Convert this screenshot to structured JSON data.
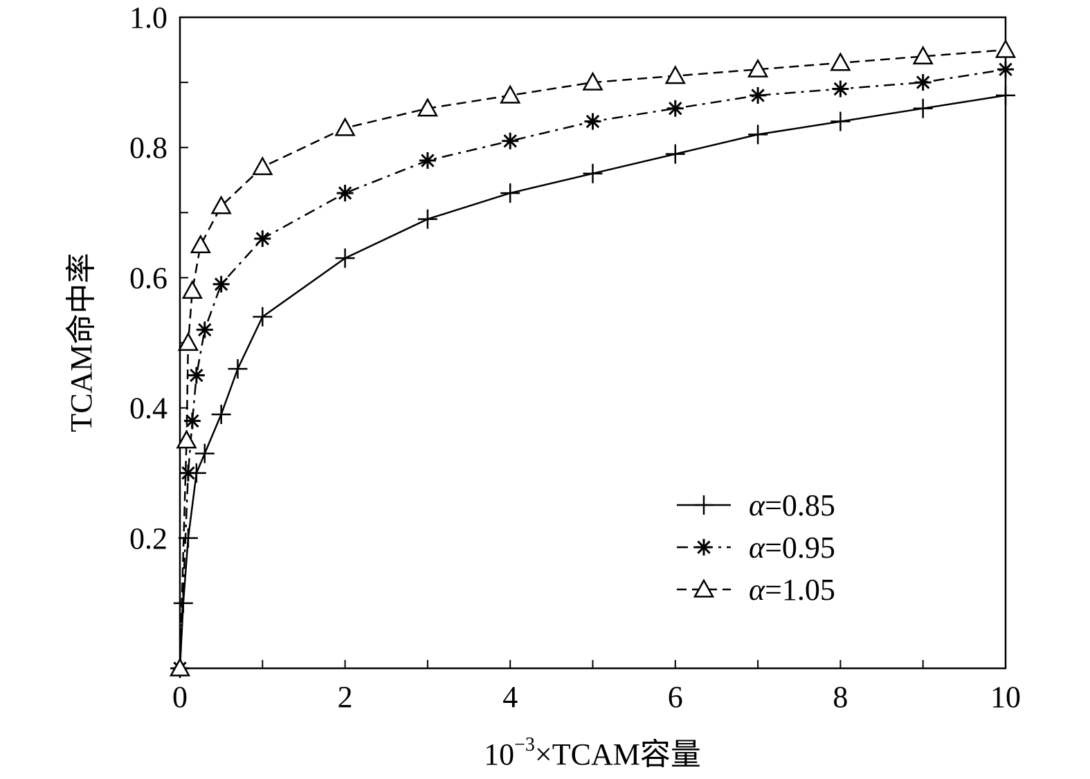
{
  "chart_data": {
    "type": "line",
    "title": "",
    "xlabel_prefix": "10",
    "xlabel_exponent": "−3",
    "xlabel_suffix": "×TCAM容量",
    "ylabel": "TCAM命中率",
    "xlim": [
      0,
      10
    ],
    "ylim": [
      0,
      1.0
    ],
    "x_ticks": [
      0,
      2,
      4,
      6,
      8,
      10
    ],
    "x_tick_labels": [
      "0",
      "2",
      "4",
      "6",
      "8",
      "10"
    ],
    "x_minor_ticks": [
      1,
      3,
      5,
      7,
      9
    ],
    "y_ticks": [
      0.2,
      0.4,
      0.6,
      0.8,
      1.0
    ],
    "y_tick_labels": [
      "0.2",
      "0.4",
      "0.6",
      "0.8",
      "1.0"
    ],
    "y_minor_ticks": [
      0.1,
      0.3,
      0.5,
      0.7,
      0.9
    ],
    "grid": false,
    "legend_position": "bottom-right",
    "series": [
      {
        "name": "α=0.85",
        "alpha_symbol": "α",
        "alpha_value": "=0.85",
        "line_style": "solid",
        "marker": "plus",
        "x": [
          0,
          0.04,
          0.1,
          0.2,
          0.3,
          0.5,
          0.7,
          1,
          2,
          3,
          4,
          5,
          6,
          7,
          8,
          9,
          10
        ],
        "y": [
          0,
          0.1,
          0.2,
          0.3,
          0.33,
          0.39,
          0.46,
          0.54,
          0.63,
          0.69,
          0.73,
          0.76,
          0.79,
          0.82,
          0.84,
          0.86,
          0.88
        ]
      },
      {
        "name": "α=0.95",
        "alpha_symbol": "α",
        "alpha_value": "=0.95",
        "line_style": "dashdot",
        "marker": "asterisk",
        "x": [
          0,
          0.1,
          0.15,
          0.2,
          0.3,
          0.5,
          1,
          2,
          3,
          4,
          5,
          6,
          7,
          8,
          9,
          10
        ],
        "y": [
          0,
          0.3,
          0.38,
          0.45,
          0.52,
          0.59,
          0.66,
          0.73,
          0.78,
          0.81,
          0.84,
          0.86,
          0.88,
          0.89,
          0.9,
          0.92
        ]
      },
      {
        "name": "α=1.05",
        "alpha_symbol": "α",
        "alpha_value": "=1.05",
        "line_style": "dashed",
        "marker": "triangle",
        "x": [
          0,
          0.08,
          0.1,
          0.15,
          0.25,
          0.5,
          1,
          2,
          3,
          4,
          5,
          6,
          7,
          8,
          9,
          10
        ],
        "y": [
          0,
          0.35,
          0.5,
          0.58,
          0.65,
          0.71,
          0.77,
          0.83,
          0.86,
          0.88,
          0.9,
          0.91,
          0.92,
          0.93,
          0.94,
          0.95
        ]
      }
    ]
  }
}
